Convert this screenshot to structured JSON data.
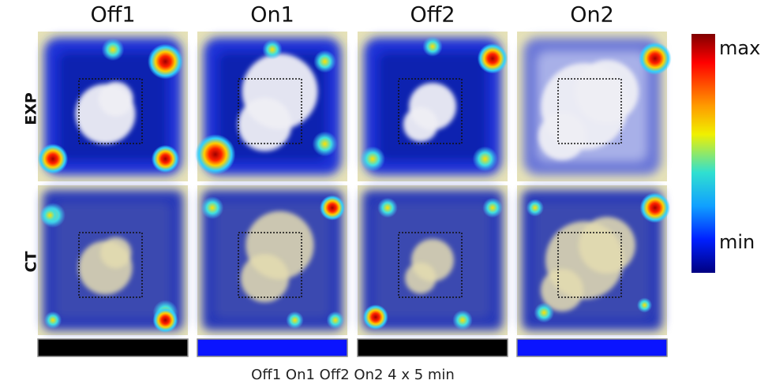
{
  "columns": [
    "Off1",
    "On1",
    "Off2",
    "On2"
  ],
  "rows": [
    "EXP",
    "CT"
  ],
  "colorbar": {
    "max": "max",
    "min": "min"
  },
  "caption": "Off1 On1 Off2 On2 4 x 5 min"
}
